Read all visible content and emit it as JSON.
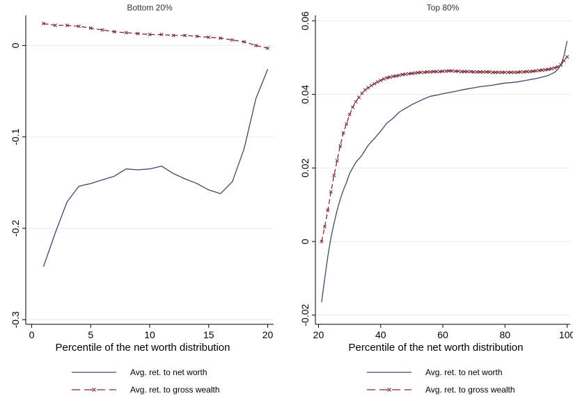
{
  "chart_data": [
    {
      "type": "line",
      "title": "Bottom 20%",
      "xlabel": "Percentile of the net worth distribution",
      "ylabel": "",
      "xlim": [
        -0.5,
        20.5
      ],
      "ylim": [
        -0.305,
        0.033
      ],
      "xticks": [
        0,
        5,
        10,
        15,
        20
      ],
      "xtick_labels": [
        "0",
        "5",
        "10",
        "15",
        "20"
      ],
      "yticks": [
        0,
        -0.1,
        -0.2,
        -0.3
      ],
      "ytick_labels": [
        "0",
        "-0.1",
        "-0.2",
        "-0.3"
      ],
      "grid": true,
      "legend_position": "bottom",
      "series": [
        {
          "name": "Avg. ret. to net worth",
          "color": "#3b4a63",
          "style": "solid",
          "marker": "none",
          "x": [
            1,
            2,
            3,
            4,
            5,
            6,
            7,
            8,
            9,
            10,
            11,
            12,
            13,
            14,
            15,
            16,
            17,
            18,
            19,
            20
          ],
          "y": [
            -0.242,
            -0.205,
            -0.171,
            -0.154,
            -0.151,
            -0.147,
            -0.143,
            -0.135,
            -0.136,
            -0.135,
            -0.132,
            -0.14,
            -0.146,
            -0.151,
            -0.158,
            -0.162,
            -0.149,
            -0.113,
            -0.058,
            -0.026
          ]
        },
        {
          "name": "Avg. ret. to gross wealth",
          "color": "#7a2a38",
          "style": "dashed",
          "marker": "x",
          "x": [
            1,
            2,
            3,
            4,
            5,
            6,
            7,
            8,
            9,
            10,
            11,
            12,
            13,
            14,
            15,
            16,
            17,
            18,
            19,
            20
          ],
          "y": [
            0.024,
            0.022,
            0.022,
            0.021,
            0.019,
            0.017,
            0.015,
            0.014,
            0.013,
            0.012,
            0.012,
            0.011,
            0.011,
            0.01,
            0.009,
            0.008,
            0.006,
            0.004,
            0.0,
            -0.003
          ]
        }
      ]
    },
    {
      "type": "line",
      "title": "Top 80%",
      "xlabel": "Percentile of the net worth distribution",
      "ylabel": "",
      "xlim": [
        19,
        101
      ],
      "ylim": [
        -0.0225,
        0.0615
      ],
      "xticks": [
        20,
        40,
        60,
        80,
        100
      ],
      "xtick_labels": [
        "20",
        "40",
        "60",
        "80",
        "100"
      ],
      "yticks": [
        -0.02,
        0,
        0.02,
        0.04,
        0.06
      ],
      "ytick_labels": [
        "-0.02",
        "0",
        "0.02",
        "0.04",
        "0.06"
      ],
      "grid": true,
      "legend_position": "bottom",
      "series": [
        {
          "name": "Avg. ret. to net worth",
          "color": "#3b4a63",
          "style": "solid",
          "marker": "none",
          "x": [
            21,
            22,
            23,
            24,
            25,
            26,
            27,
            28,
            29,
            30,
            32,
            34,
            36,
            38,
            40,
            42,
            44,
            46,
            48,
            50,
            52,
            54,
            56,
            58,
            60,
            62,
            64,
            66,
            68,
            70,
            72,
            74,
            76,
            78,
            80,
            82,
            84,
            86,
            88,
            90,
            92,
            94,
            96,
            97,
            98,
            99,
            100
          ],
          "y": [
            -0.0165,
            -0.01,
            -0.004,
            0.001,
            0.005,
            0.0085,
            0.0115,
            0.014,
            0.016,
            0.0185,
            0.0215,
            0.0235,
            0.0262,
            0.028,
            0.03,
            0.0322,
            0.0335,
            0.0352,
            0.0362,
            0.0372,
            0.038,
            0.0388,
            0.0395,
            0.0398,
            0.0402,
            0.0405,
            0.0408,
            0.0412,
            0.0415,
            0.0418,
            0.0421,
            0.0423,
            0.0425,
            0.0428,
            0.0431,
            0.0432,
            0.0434,
            0.0437,
            0.044,
            0.0443,
            0.0447,
            0.0452,
            0.046,
            0.0468,
            0.048,
            0.0505,
            0.0545
          ]
        },
        {
          "name": "Avg. ret. to gross wealth",
          "color": "#7a2a38",
          "style": "dashed",
          "marker": "x",
          "x": [
            21,
            22,
            23,
            24,
            25,
            26,
            27,
            28,
            29,
            30,
            31,
            32,
            33,
            34,
            35,
            36,
            37,
            38,
            39,
            40,
            41,
            42,
            43,
            44,
            45,
            46,
            47,
            48,
            49,
            50,
            51,
            52,
            53,
            54,
            55,
            56,
            57,
            58,
            59,
            60,
            61,
            62,
            63,
            64,
            65,
            66,
            67,
            68,
            69,
            70,
            71,
            72,
            73,
            74,
            75,
            76,
            77,
            78,
            79,
            80,
            81,
            82,
            83,
            84,
            85,
            86,
            87,
            88,
            89,
            90,
            91,
            92,
            93,
            94,
            95,
            96,
            97,
            98,
            99,
            100
          ],
          "y": [
            0.0,
            0.004,
            0.0085,
            0.0135,
            0.018,
            0.022,
            0.026,
            0.0295,
            0.032,
            0.0345,
            0.0365,
            0.038,
            0.0392,
            0.0403,
            0.0412,
            0.0418,
            0.0424,
            0.0429,
            0.0434,
            0.0438,
            0.0442,
            0.0445,
            0.0447,
            0.0449,
            0.045,
            0.0452,
            0.0454,
            0.0455,
            0.0456,
            0.0457,
            0.0458,
            0.0459,
            0.046,
            0.046,
            0.0461,
            0.0461,
            0.0462,
            0.0462,
            0.0462,
            0.0463,
            0.0463,
            0.0464,
            0.0464,
            0.0463,
            0.0463,
            0.0462,
            0.0462,
            0.0462,
            0.0462,
            0.0461,
            0.0461,
            0.0461,
            0.0461,
            0.0461,
            0.0461,
            0.046,
            0.046,
            0.046,
            0.046,
            0.046,
            0.046,
            0.046,
            0.046,
            0.046,
            0.0461,
            0.0461,
            0.0462,
            0.0462,
            0.0463,
            0.0464,
            0.0465,
            0.0466,
            0.0467,
            0.0468,
            0.047,
            0.0472,
            0.0475,
            0.048,
            0.0492,
            0.0502
          ]
        }
      ]
    }
  ]
}
